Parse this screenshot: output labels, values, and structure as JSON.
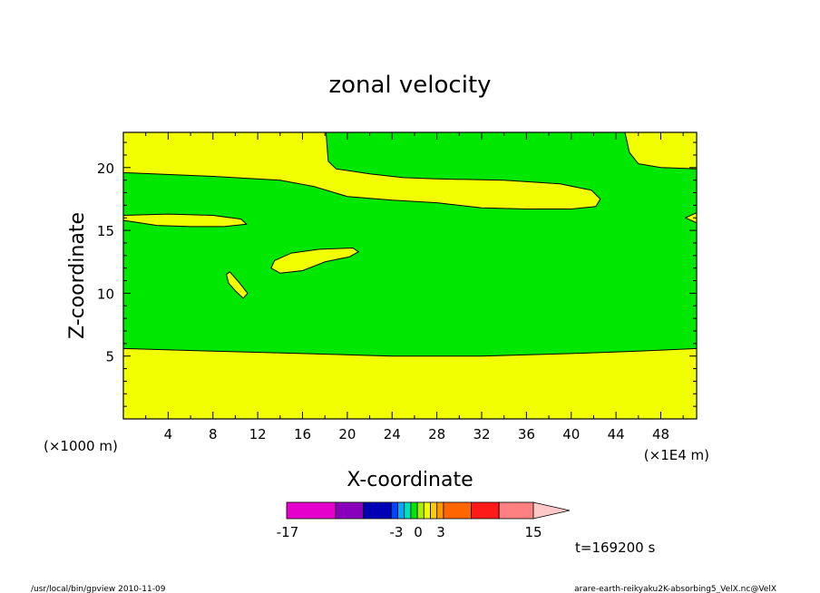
{
  "chart_data": {
    "type": "heatmap",
    "title": "zonal velocity",
    "xlabel": "X-coordinate",
    "ylabel": "Z-coordinate",
    "x_unit_left": "(×1000 m)",
    "x_unit_right": "(×1E4 m)",
    "x_ticks": [
      "4",
      "8",
      "12",
      "16",
      "20",
      "24",
      "28",
      "32",
      "36",
      "40",
      "44",
      "48"
    ],
    "x_tick_values": [
      4,
      8,
      12,
      16,
      20,
      24,
      28,
      32,
      36,
      40,
      44,
      48
    ],
    "y_ticks": [
      "5",
      "10",
      "15",
      "20"
    ],
    "y_tick_values": [
      5,
      10,
      15,
      20
    ],
    "xlim": [
      0,
      51.2
    ],
    "ylim": [
      0,
      22.8
    ],
    "grid": false,
    "colors": {
      "background_level": "#00e800",
      "positive_level": "#f2ff00",
      "contour_line": "#000000"
    },
    "regions": [
      {
        "level": "positive",
        "points": [
          [
            0,
            0
          ],
          [
            51.2,
            0
          ],
          [
            51.2,
            5.6
          ],
          [
            46,
            5.4
          ],
          [
            40,
            5.2
          ],
          [
            32,
            5.0
          ],
          [
            24,
            5.0
          ],
          [
            16,
            5.2
          ],
          [
            8,
            5.4
          ],
          [
            0,
            5.6
          ]
        ]
      },
      {
        "level": "positive",
        "points": [
          [
            0,
            22.8
          ],
          [
            18.1,
            22.8
          ],
          [
            18.3,
            20.5
          ],
          [
            19,
            19.9
          ],
          [
            22,
            19.5
          ],
          [
            25,
            19.2
          ],
          [
            28,
            19.1
          ],
          [
            34,
            19.0
          ],
          [
            39,
            18.7
          ],
          [
            41.8,
            18.2
          ],
          [
            42.6,
            17.5
          ],
          [
            42.2,
            16.9
          ],
          [
            40,
            16.7
          ],
          [
            36,
            16.7
          ],
          [
            32,
            16.8
          ],
          [
            28,
            17.2
          ],
          [
            24,
            17.4
          ],
          [
            20,
            17.7
          ],
          [
            17,
            18.5
          ],
          [
            14,
            19.0
          ],
          [
            8,
            19.3
          ],
          [
            0,
            19.6
          ]
        ]
      },
      {
        "level": "positive",
        "points": [
          [
            44.8,
            22.8
          ],
          [
            51.2,
            22.8
          ],
          [
            51.2,
            19.9
          ],
          [
            48,
            20.0
          ],
          [
            46,
            20.3
          ],
          [
            45.2,
            21.2
          ]
        ]
      },
      {
        "level": "positive",
        "points": [
          [
            0,
            16.2
          ],
          [
            4,
            16.3
          ],
          [
            8,
            16.2
          ],
          [
            10.5,
            15.9
          ],
          [
            11,
            15.5
          ],
          [
            9,
            15.3
          ],
          [
            6,
            15.3
          ],
          [
            3,
            15.4
          ],
          [
            0,
            15.8
          ]
        ]
      },
      {
        "level": "positive",
        "points": [
          [
            13.2,
            12.0
          ],
          [
            13.5,
            12.6
          ],
          [
            15,
            13.2
          ],
          [
            17.5,
            13.5
          ],
          [
            20.5,
            13.6
          ],
          [
            21,
            13.3
          ],
          [
            20.2,
            12.9
          ],
          [
            18,
            12.5
          ],
          [
            16,
            11.8
          ],
          [
            14,
            11.6
          ]
        ]
      },
      {
        "level": "positive",
        "points": [
          [
            9.2,
            11.5
          ],
          [
            9.5,
            11.7
          ],
          [
            10.3,
            10.9
          ],
          [
            11.1,
            10.0
          ],
          [
            10.7,
            9.6
          ],
          [
            10,
            10.2
          ],
          [
            9.4,
            10.8
          ]
        ]
      },
      {
        "level": "positive",
        "points": [
          [
            51.2,
            16.4
          ],
          [
            50.2,
            16.0
          ],
          [
            51.2,
            15.6
          ]
        ]
      }
    ],
    "colorbar": {
      "tick_labels": [
        "-17",
        "-3",
        "0",
        "3",
        "15"
      ],
      "segments": [
        {
          "color": "#e600cc",
          "weight": 3
        },
        {
          "color": "#8800bb",
          "weight": 1.7
        },
        {
          "color": "#0000b4",
          "weight": 1.7
        },
        {
          "color": "#0044ff",
          "weight": 0.4
        },
        {
          "color": "#00aaff",
          "weight": 0.4
        },
        {
          "color": "#00e0c0",
          "weight": 0.4
        },
        {
          "color": "#00e800",
          "weight": 0.4
        },
        {
          "color": "#aaee00",
          "weight": 0.4
        },
        {
          "color": "#f2ff00",
          "weight": 0.4
        },
        {
          "color": "#ffcc00",
          "weight": 0.4
        },
        {
          "color": "#ff9900",
          "weight": 0.4
        },
        {
          "color": "#ff6600",
          "weight": 1.7
        },
        {
          "color": "#ff1a1a",
          "weight": 1.7
        },
        {
          "color": "#ff8080",
          "weight": 2.1
        }
      ],
      "arrow_color": "#ffc8c8"
    },
    "time_label": "t=169200 s"
  },
  "footer": {
    "left": "/usr/local/bin/gpview  2010-11-09",
    "right": "arare-earth-reikyaku2K-absorbing5_VelX.nc@VelX"
  }
}
